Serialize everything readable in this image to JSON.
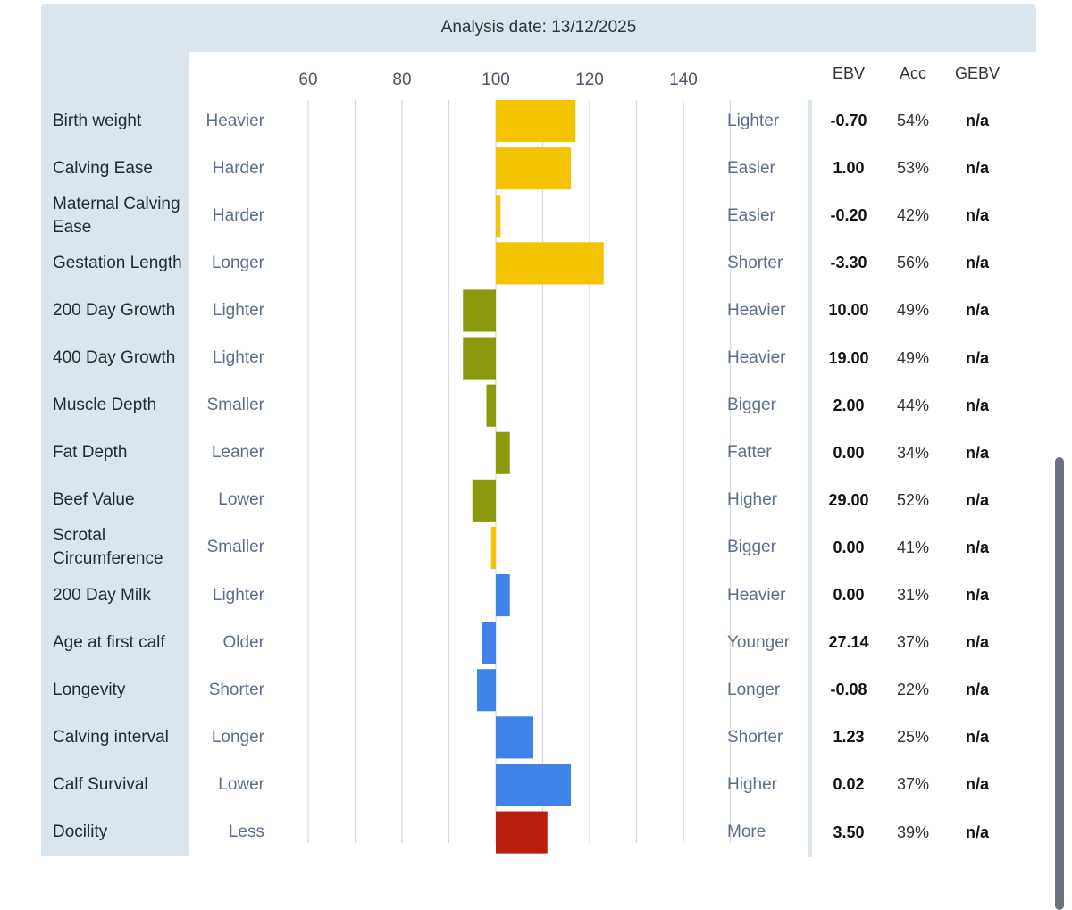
{
  "header": {
    "analysis_date": "Analysis date: 13/12/2025"
  },
  "columns": {
    "ebv": "EBV",
    "acc": "Acc",
    "gebv": "GEBV"
  },
  "colors": {
    "calving": "#f5c400",
    "growth": "#8a9a0c",
    "maternal": "#3f83e8",
    "docility": "#b81e0c"
  },
  "chart_data": {
    "type": "bar",
    "orientation": "horizontal",
    "baseline": 100,
    "xlim": [
      50,
      155
    ],
    "xticks": [
      60,
      80,
      100,
      120,
      140
    ],
    "grid": true,
    "categories": [
      "Birth weight",
      "Calving Ease",
      "Maternal Calving Ease",
      "Gestation Length",
      "200 Day Growth",
      "400 Day Growth",
      "Muscle Depth",
      "Fat Depth",
      "Beef Value",
      "Scrotal Circumference",
      "200 Day Milk",
      "Age at first calf",
      "Longevity",
      "Calving interval",
      "Calf Survival",
      "Docility"
    ],
    "values": [
      117,
      116,
      101,
      123,
      93,
      93,
      98,
      103,
      95,
      99,
      103,
      97,
      96,
      108,
      116,
      111
    ]
  },
  "traits": [
    {
      "name": "Birth weight",
      "low": "Heavier",
      "high": "Lighter",
      "ebv": "-0.70",
      "acc": "54%",
      "gebv": "n/a",
      "group": "calving"
    },
    {
      "name": "Calving Ease",
      "low": "Harder",
      "high": "Easier",
      "ebv": "1.00",
      "acc": "53%",
      "gebv": "n/a",
      "group": "calving"
    },
    {
      "name": "Maternal Calving Ease",
      "low": "Harder",
      "high": "Easier",
      "ebv": "-0.20",
      "acc": "42%",
      "gebv": "n/a",
      "group": "calving"
    },
    {
      "name": "Gestation Length",
      "low": "Longer",
      "high": "Shorter",
      "ebv": "-3.30",
      "acc": "56%",
      "gebv": "n/a",
      "group": "calving"
    },
    {
      "name": "200 Day Growth",
      "low": "Lighter",
      "high": "Heavier",
      "ebv": "10.00",
      "acc": "49%",
      "gebv": "n/a",
      "group": "growth"
    },
    {
      "name": "400 Day Growth",
      "low": "Lighter",
      "high": "Heavier",
      "ebv": "19.00",
      "acc": "49%",
      "gebv": "n/a",
      "group": "growth"
    },
    {
      "name": "Muscle Depth",
      "low": "Smaller",
      "high": "Bigger",
      "ebv": "2.00",
      "acc": "44%",
      "gebv": "n/a",
      "group": "growth"
    },
    {
      "name": "Fat Depth",
      "low": "Leaner",
      "high": "Fatter",
      "ebv": "0.00",
      "acc": "34%",
      "gebv": "n/a",
      "group": "growth"
    },
    {
      "name": "Beef Value",
      "low": "Lower",
      "high": "Higher",
      "ebv": "29.00",
      "acc": "52%",
      "gebv": "n/a",
      "group": "growth"
    },
    {
      "name": "Scrotal Circumference",
      "low": "Smaller",
      "high": "Bigger",
      "ebv": "0.00",
      "acc": "41%",
      "gebv": "n/a",
      "group": "calving"
    },
    {
      "name": "200 Day Milk",
      "low": "Lighter",
      "high": "Heavier",
      "ebv": "0.00",
      "acc": "31%",
      "gebv": "n/a",
      "group": "maternal"
    },
    {
      "name": "Age at first calf",
      "low": "Older",
      "high": "Younger",
      "ebv": "27.14",
      "acc": "37%",
      "gebv": "n/a",
      "group": "maternal"
    },
    {
      "name": "Longevity",
      "low": "Shorter",
      "high": "Longer",
      "ebv": "-0.08",
      "acc": "22%",
      "gebv": "n/a",
      "group": "maternal"
    },
    {
      "name": "Calving interval",
      "low": "Longer",
      "high": "Shorter",
      "ebv": "1.23",
      "acc": "25%",
      "gebv": "n/a",
      "group": "maternal"
    },
    {
      "name": "Calf Survival",
      "low": "Lower",
      "high": "Higher",
      "ebv": "0.02",
      "acc": "37%",
      "gebv": "n/a",
      "group": "maternal"
    },
    {
      "name": "Docility",
      "low": "Less",
      "high": "More",
      "ebv": "3.50",
      "acc": "39%",
      "gebv": "n/a",
      "group": "docility"
    }
  ]
}
